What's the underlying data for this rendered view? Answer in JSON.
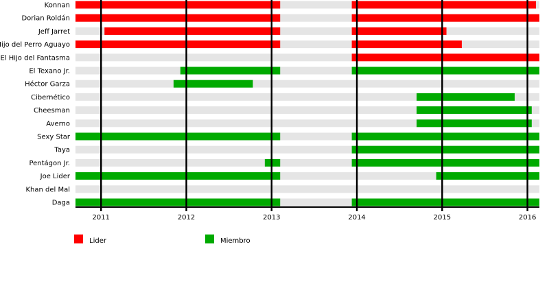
{
  "chart_data": {
    "type": "timeline",
    "x_axis": {
      "min": 2010.7,
      "max": 2016.14,
      "ticks": [
        2011,
        2012,
        2013,
        2014,
        2015,
        2016
      ]
    },
    "grid": "vertical lines at each year",
    "legend": {
      "placement": "bottom-left",
      "items": [
        {
          "key": "lider",
          "label": "Lider",
          "color": "#ff0000"
        },
        {
          "key": "miembro",
          "label": "Miembro",
          "color": "#00aa00"
        }
      ]
    },
    "row_background_color": "#e5e5e5",
    "rows": [
      {
        "name": "Konnan",
        "periods": [
          {
            "start": 2010.7,
            "end": 2013.1,
            "role": "lider"
          },
          {
            "start": 2013.94,
            "end": 2016.1,
            "role": "lider"
          }
        ]
      },
      {
        "name": "Dorian Roldán",
        "periods": [
          {
            "start": 2010.7,
            "end": 2013.1,
            "role": "lider"
          },
          {
            "start": 2013.94,
            "end": 2016.14,
            "role": "lider"
          }
        ]
      },
      {
        "name": "Jeff Jarret",
        "periods": [
          {
            "start": 2011.04,
            "end": 2013.1,
            "role": "lider"
          },
          {
            "start": 2013.94,
            "end": 2015.05,
            "role": "lider"
          }
        ]
      },
      {
        "name": "Hijo del Perro Aguayo",
        "periods": [
          {
            "start": 2010.7,
            "end": 2013.1,
            "role": "lider"
          },
          {
            "start": 2013.94,
            "end": 2015.23,
            "role": "lider"
          }
        ]
      },
      {
        "name": "El Hijo del Fantasma",
        "periods": [
          {
            "start": 2013.94,
            "end": 2016.14,
            "role": "lider"
          }
        ]
      },
      {
        "name": "El Texano Jr.",
        "periods": [
          {
            "start": 2011.93,
            "end": 2013.1,
            "role": "miembro"
          },
          {
            "start": 2013.94,
            "end": 2016.14,
            "role": "miembro"
          }
        ]
      },
      {
        "name": "Héctor Garza",
        "periods": [
          {
            "start": 2011.85,
            "end": 2012.78,
            "role": "miembro"
          }
        ]
      },
      {
        "name": "Cibernético",
        "periods": [
          {
            "start": 2014.7,
            "end": 2015.85,
            "role": "miembro"
          }
        ]
      },
      {
        "name": "Cheesman",
        "periods": [
          {
            "start": 2014.7,
            "end": 2016.05,
            "role": "miembro"
          }
        ]
      },
      {
        "name": "Averno",
        "periods": [
          {
            "start": 2014.7,
            "end": 2016.05,
            "role": "miembro"
          }
        ]
      },
      {
        "name": "Sexy Star",
        "periods": [
          {
            "start": 2010.7,
            "end": 2013.1,
            "role": "miembro"
          },
          {
            "start": 2013.94,
            "end": 2016.14,
            "role": "miembro"
          }
        ]
      },
      {
        "name": "Taya",
        "periods": [
          {
            "start": 2013.94,
            "end": 2016.14,
            "role": "miembro"
          }
        ]
      },
      {
        "name": "Pentágon Jr.",
        "periods": [
          {
            "start": 2012.92,
            "end": 2013.1,
            "role": "miembro"
          },
          {
            "start": 2013.94,
            "end": 2016.14,
            "role": "miembro"
          }
        ]
      },
      {
        "name": "Joe Lider",
        "periods": [
          {
            "start": 2010.7,
            "end": 2013.1,
            "role": "miembro"
          },
          {
            "start": 2014.93,
            "end": 2016.14,
            "role": "miembro"
          }
        ]
      },
      {
        "name": "Khan del Mal",
        "periods": []
      },
      {
        "name": "Daga",
        "periods": [
          {
            "start": 2010.7,
            "end": 2013.1,
            "role": "miembro"
          },
          {
            "start": 2013.94,
            "end": 2016.14,
            "role": "miembro"
          }
        ]
      }
    ]
  }
}
